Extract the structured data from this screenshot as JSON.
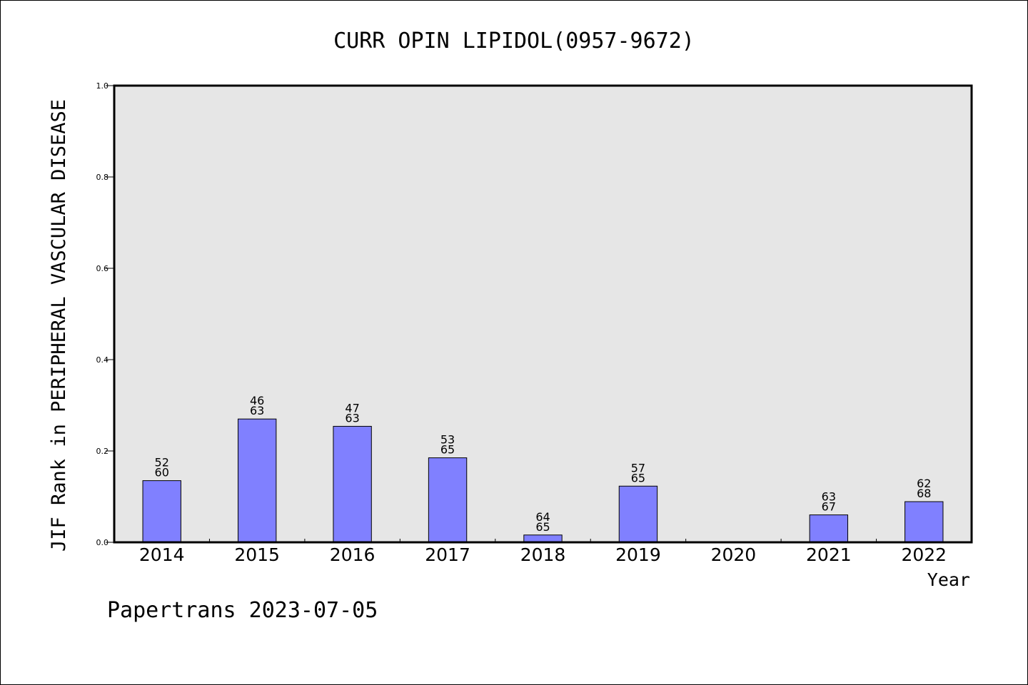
{
  "chart_data": {
    "type": "bar",
    "title": "CURR OPIN LIPIDOL(0957-9672)",
    "xlabel": "Year",
    "ylabel": "JIF Rank in PERIPHERAL VASCULAR DISEASE",
    "footer": "Papertrans 2023-07-05",
    "ylim": [
      0,
      1.0
    ],
    "yticks": [
      "0.0",
      "0.2",
      "0.4",
      "0.6",
      "0.8",
      "1.0"
    ],
    "yticks_values": [
      0,
      0.2,
      0.4,
      0.6,
      0.8,
      1.0
    ],
    "categories": [
      "2014",
      "2015",
      "2016",
      "2017",
      "2018",
      "2019",
      "2020",
      "2021",
      "2022"
    ],
    "values": [
      0.135,
      0.27,
      0.254,
      0.185,
      0.016,
      0.123,
      null,
      0.06,
      0.089
    ],
    "rank_labels": [
      [
        "52",
        "60"
      ],
      [
        "46",
        "63"
      ],
      [
        "47",
        "63"
      ],
      [
        "53",
        "65"
      ],
      [
        "64",
        "65"
      ],
      [
        "57",
        "65"
      ],
      null,
      [
        "63",
        "67"
      ],
      [
        "62",
        "68"
      ]
    ],
    "grid": false,
    "bar_color": "#8080ff",
    "plot_background": "#e6e6e6"
  }
}
